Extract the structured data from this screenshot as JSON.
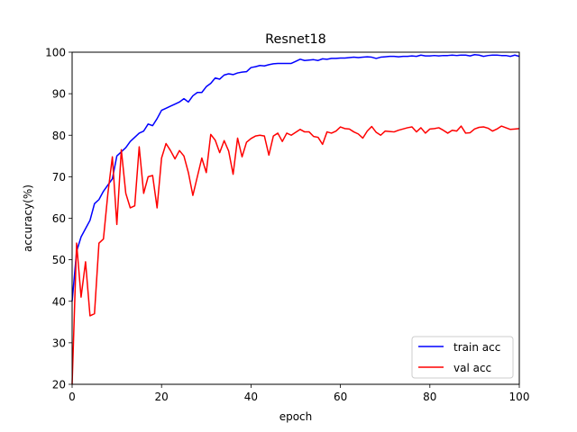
{
  "chart_data": {
    "type": "line",
    "title": "Resnet18",
    "xlabel": "epoch",
    "ylabel": "accuracy(%)",
    "xlim": [
      0,
      100
    ],
    "ylim": [
      20,
      100
    ],
    "xticks": [
      0,
      20,
      40,
      60,
      80,
      100
    ],
    "yticks": [
      20,
      30,
      40,
      50,
      60,
      70,
      80,
      90,
      100
    ],
    "grid": false,
    "legend": "lower-right",
    "x": [
      0,
      1,
      2,
      3,
      4,
      5,
      6,
      7,
      8,
      9,
      10,
      11,
      12,
      13,
      14,
      15,
      16,
      17,
      18,
      19,
      20,
      21,
      22,
      23,
      24,
      25,
      26,
      27,
      28,
      29,
      30,
      31,
      32,
      33,
      34,
      35,
      36,
      37,
      38,
      39,
      40,
      41,
      42,
      43,
      44,
      45,
      46,
      47,
      48,
      49,
      50,
      51,
      52,
      53,
      54,
      55,
      56,
      57,
      58,
      59,
      60,
      61,
      62,
      63,
      64,
      65,
      66,
      67,
      68,
      69,
      70,
      71,
      72,
      73,
      74,
      75,
      76,
      77,
      78,
      79,
      80,
      81,
      82,
      83,
      84,
      85,
      86,
      87,
      88,
      89,
      90,
      91,
      92,
      93,
      94,
      95,
      96,
      97,
      98,
      99,
      100
    ],
    "series": [
      {
        "name": "train acc",
        "color": "#0000ff",
        "values": [
          40.0,
          52.0,
          55.5,
          57.5,
          59.5,
          63.5,
          64.5,
          66.5,
          68.0,
          69.5,
          75.0,
          76.0,
          77.0,
          78.5,
          79.5,
          80.5,
          81.0,
          82.7,
          82.3,
          84.0,
          86.0,
          86.5,
          87.0,
          87.5,
          88.0,
          88.8,
          88.0,
          89.5,
          90.3,
          90.3,
          91.7,
          92.5,
          93.8,
          93.5,
          94.5,
          94.8,
          94.6,
          95.0,
          95.2,
          95.3,
          96.3,
          96.5,
          96.8,
          96.7,
          97.0,
          97.2,
          97.3,
          97.3,
          97.3,
          97.3,
          97.8,
          98.3,
          98.0,
          98.1,
          98.2,
          98.0,
          98.4,
          98.3,
          98.5,
          98.5,
          98.6,
          98.6,
          98.7,
          98.8,
          98.7,
          98.8,
          98.9,
          98.8,
          98.5,
          98.8,
          98.9,
          99.0,
          99.0,
          98.9,
          99.0,
          99.0,
          99.1,
          99.0,
          99.3,
          99.1,
          99.1,
          99.2,
          99.1,
          99.2,
          99.2,
          99.3,
          99.2,
          99.3,
          99.3,
          99.1,
          99.4,
          99.3,
          99.0,
          99.2,
          99.3,
          99.3,
          99.2,
          99.2,
          99.0,
          99.3,
          99.0
        ]
      },
      {
        "name": "val acc",
        "color": "#ff0000",
        "values": [
          20.0,
          54.0,
          41.0,
          49.5,
          36.5,
          37.0,
          54.0,
          55.0,
          66.0,
          74.8,
          58.5,
          76.5,
          66.0,
          62.5,
          63.0,
          77.2,
          66.0,
          70.0,
          70.3,
          62.5,
          74.5,
          78.0,
          76.3,
          74.3,
          76.3,
          75.0,
          71.0,
          65.5,
          70.0,
          74.5,
          71.0,
          80.2,
          78.8,
          75.8,
          78.7,
          76.2,
          70.6,
          79.3,
          74.8,
          78.3,
          79.2,
          79.8,
          80.0,
          79.8,
          75.2,
          79.8,
          80.5,
          78.5,
          80.5,
          80.0,
          80.7,
          81.4,
          80.8,
          80.8,
          79.7,
          79.5,
          77.8,
          80.8,
          80.5,
          81.0,
          82.0,
          81.6,
          81.5,
          80.8,
          80.3,
          79.3,
          81.0,
          82.1,
          80.7,
          80.0,
          81.0,
          80.9,
          80.8,
          81.2,
          81.5,
          81.8,
          82.0,
          80.8,
          81.8,
          80.5,
          81.5,
          81.6,
          81.8,
          81.2,
          80.5,
          81.2,
          81.0,
          82.2,
          80.5,
          80.6,
          81.5,
          81.9,
          82.0,
          81.7,
          81.0,
          81.5,
          82.2,
          81.8,
          81.4,
          81.5,
          81.6
        ]
      }
    ]
  }
}
